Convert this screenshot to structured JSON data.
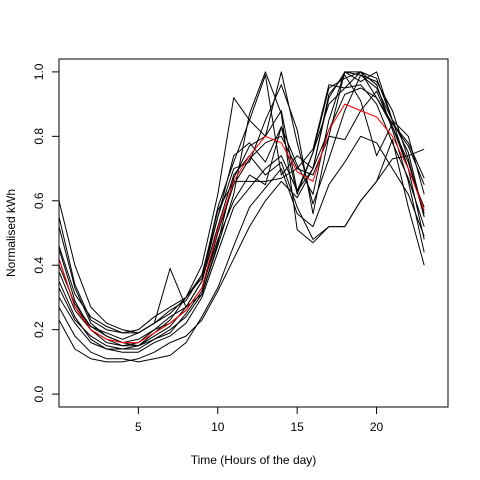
{
  "chart_data": {
    "type": "line",
    "xlabel": "Time (Hours of the day)",
    "ylabel": "Normalised kWh",
    "xlim": [
      0,
      24.5
    ],
    "ylim": [
      -0.04,
      1.04
    ],
    "xticks": [
      5,
      10,
      15,
      20
    ],
    "yticks": [
      0.0,
      0.2,
      0.4,
      0.6,
      0.8,
      1.0
    ],
    "grid": false,
    "x": [
      0,
      1,
      2,
      3,
      4,
      5,
      6,
      7,
      8,
      9,
      10,
      11,
      12,
      13,
      14,
      15,
      16,
      17,
      18,
      19,
      20,
      21,
      22,
      23
    ],
    "series": [
      {
        "color": "#000000",
        "values": [
          0.6,
          0.4,
          0.27,
          0.22,
          0.2,
          0.19,
          0.22,
          0.25,
          0.3,
          0.4,
          0.62,
          0.92,
          0.85,
          0.8,
          0.88,
          0.63,
          0.7,
          0.92,
          1.0,
          0.97,
          1.0,
          0.85,
          0.8,
          0.62
        ]
      },
      {
        "color": "#000000",
        "values": [
          0.52,
          0.33,
          0.22,
          0.18,
          0.16,
          0.17,
          0.2,
          0.24,
          0.27,
          0.35,
          0.55,
          0.7,
          0.72,
          0.85,
          0.96,
          0.82,
          0.56,
          0.8,
          1.0,
          0.99,
          0.95,
          0.85,
          0.7,
          0.48
        ]
      },
      {
        "color": "#000000",
        "values": [
          0.45,
          0.29,
          0.2,
          0.16,
          0.15,
          0.16,
          0.2,
          0.22,
          0.26,
          0.33,
          0.48,
          0.6,
          0.68,
          0.65,
          0.83,
          0.71,
          0.62,
          0.85,
          1.0,
          1.0,
          0.98,
          0.85,
          0.75,
          0.55
        ]
      },
      {
        "color": "#000000",
        "values": [
          0.42,
          0.27,
          0.21,
          0.18,
          0.16,
          0.15,
          0.19,
          0.23,
          0.3,
          0.37,
          0.55,
          0.74,
          0.78,
          0.72,
          0.83,
          0.62,
          0.75,
          0.9,
          0.95,
          1.0,
          0.92,
          0.83,
          0.7,
          0.58
        ]
      },
      {
        "color": "#000000",
        "values": [
          0.38,
          0.26,
          0.2,
          0.17,
          0.15,
          0.15,
          0.18,
          0.21,
          0.27,
          0.35,
          0.52,
          0.68,
          0.74,
          0.68,
          0.72,
          0.58,
          0.48,
          0.52,
          0.52,
          0.6,
          0.66,
          0.73,
          0.74,
          0.76
        ]
      },
      {
        "color": "#000000",
        "values": [
          0.35,
          0.24,
          0.17,
          0.14,
          0.13,
          0.13,
          0.16,
          0.18,
          0.22,
          0.3,
          0.44,
          0.58,
          0.64,
          0.7,
          0.74,
          0.63,
          0.75,
          0.95,
          0.98,
          1.0,
          0.96,
          0.82,
          0.66,
          0.44
        ]
      },
      {
        "color": "#000000",
        "values": [
          0.3,
          0.22,
          0.16,
          0.14,
          0.14,
          0.15,
          0.17,
          0.2,
          0.24,
          0.31,
          0.46,
          0.62,
          0.87,
          1.0,
          0.87,
          0.51,
          0.47,
          0.52,
          0.52,
          0.6,
          0.66,
          0.79,
          0.58,
          0.4
        ]
      },
      {
        "color": "#000000",
        "values": [
          0.27,
          0.18,
          0.13,
          0.11,
          0.11,
          0.1,
          0.11,
          0.12,
          0.16,
          0.24,
          0.33,
          0.46,
          0.58,
          0.64,
          0.7,
          0.56,
          0.52,
          0.65,
          0.72,
          0.8,
          0.78,
          0.7,
          0.62,
          0.49
        ]
      },
      {
        "color": "#000000",
        "values": [
          0.23,
          0.14,
          0.11,
          0.1,
          0.1,
          0.11,
          0.13,
          0.16,
          0.18,
          0.23,
          0.32,
          0.42,
          0.52,
          0.6,
          0.66,
          0.61,
          0.7,
          0.82,
          0.93,
          0.95,
          0.92,
          0.84,
          0.77,
          0.65
        ]
      },
      {
        "color": "#000000",
        "values": [
          0.55,
          0.34,
          0.23,
          0.2,
          0.19,
          0.19,
          0.22,
          0.39,
          0.27,
          0.31,
          0.47,
          0.67,
          0.77,
          0.8,
          1.0,
          0.78,
          0.59,
          0.73,
          0.88,
          0.99,
          0.97,
          0.88,
          0.73,
          0.55
        ]
      },
      {
        "color": "#000000",
        "values": [
          0.46,
          0.31,
          0.24,
          0.21,
          0.19,
          0.2,
          0.24,
          0.27,
          0.3,
          0.36,
          0.58,
          0.72,
          0.85,
          0.99,
          0.68,
          0.74,
          0.7,
          0.93,
          0.99,
          0.91,
          0.74,
          0.84,
          0.78,
          0.67
        ]
      },
      {
        "color": "#000000",
        "values": [
          0.4,
          0.28,
          0.21,
          0.19,
          0.17,
          0.19,
          0.22,
          0.26,
          0.29,
          0.37,
          0.57,
          0.66,
          0.66,
          0.66,
          0.67,
          0.7,
          0.76,
          0.96,
          0.95,
          0.96,
          0.9,
          0.78,
          0.67,
          0.52
        ]
      },
      {
        "color": "#000000",
        "values": [
          0.33,
          0.23,
          0.18,
          0.15,
          0.14,
          0.14,
          0.17,
          0.19,
          0.25,
          0.32,
          0.5,
          0.65,
          0.73,
          0.78,
          0.8,
          0.7,
          0.68,
          0.8,
          0.79,
          0.88,
          0.94,
          0.83,
          0.72,
          0.56
        ]
      },
      {
        "color": "#ff0000",
        "values": [
          0.42,
          0.27,
          0.2,
          0.17,
          0.16,
          0.16,
          0.19,
          0.22,
          0.26,
          0.33,
          0.51,
          0.66,
          0.74,
          0.8,
          0.78,
          0.69,
          0.66,
          0.82,
          0.9,
          0.88,
          0.86,
          0.8,
          0.7,
          0.57
        ]
      }
    ]
  }
}
